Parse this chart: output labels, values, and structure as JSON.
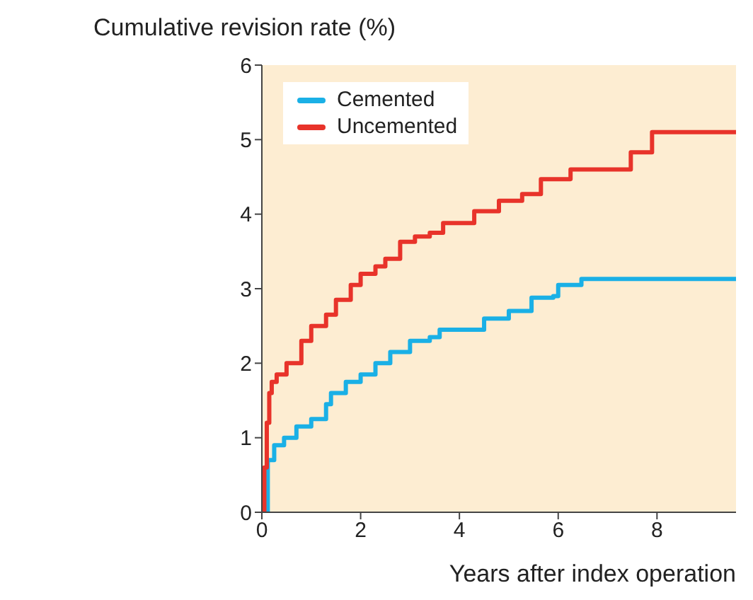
{
  "chart_data": {
    "type": "step",
    "ylabel": "Cumulative revision rate (%)",
    "xlabel": "Years after index operation",
    "xlim": [
      0,
      9.6
    ],
    "ylim": [
      0,
      6
    ],
    "xticks": [
      0,
      2,
      4,
      6,
      8
    ],
    "yticks": [
      0,
      1,
      2,
      3,
      4,
      5,
      6
    ],
    "grid": false,
    "legend": "top left",
    "marker": "none",
    "line_style": "solid",
    "series": [
      {
        "name": "Cemented",
        "color": "#1ab0e6",
        "x": [
          0,
          0.08,
          0.12,
          0.25,
          0.45,
          0.7,
          1.0,
          1.3,
          1.4,
          1.7,
          2.0,
          2.3,
          2.6,
          3.0,
          3.4,
          3.6,
          4.2,
          4.5,
          5.0,
          5.46,
          5.9,
          6.0,
          6.47,
          9.6
        ],
        "values": [
          0,
          0,
          0.7,
          0.9,
          1.0,
          1.15,
          1.25,
          1.45,
          1.6,
          1.75,
          1.85,
          2.0,
          2.15,
          2.3,
          2.35,
          2.45,
          2.45,
          2.6,
          2.7,
          2.88,
          2.9,
          3.05,
          3.13,
          3.13
        ]
      },
      {
        "name": "Uncemented",
        "color": "#e8332a",
        "x": [
          0,
          0.05,
          0.1,
          0.15,
          0.2,
          0.3,
          0.5,
          0.8,
          1.0,
          1.3,
          1.5,
          1.8,
          2.0,
          2.3,
          2.5,
          2.8,
          3.1,
          3.4,
          3.67,
          4.3,
          4.8,
          5.27,
          5.65,
          6.25,
          7.47,
          7.9,
          9.6
        ],
        "values": [
          0,
          0.6,
          1.2,
          1.6,
          1.75,
          1.85,
          2.0,
          2.3,
          2.5,
          2.65,
          2.85,
          3.05,
          3.2,
          3.3,
          3.4,
          3.63,
          3.7,
          3.75,
          3.88,
          4.04,
          4.18,
          4.27,
          4.47,
          4.6,
          4.83,
          5.1,
          5.1
        ]
      }
    ]
  }
}
